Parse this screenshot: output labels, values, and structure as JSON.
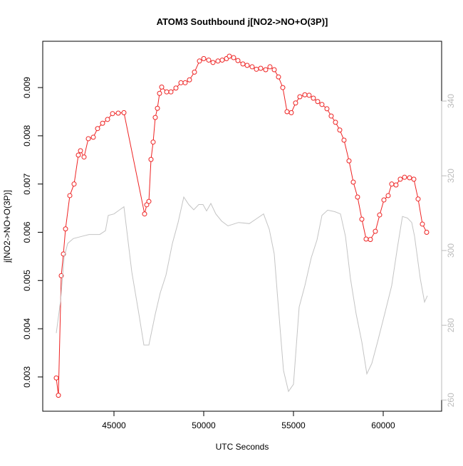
{
  "chart_data": {
    "type": "line",
    "title": "ATOM3 Southbound j[NO2->NO+O(3P)]",
    "xlabel": "UTC Seconds",
    "ylabel": "j[NO2->NO+O(3P)]",
    "xlim": [
      41032,
      63254
    ],
    "ylim": [
      0.00229,
      0.00996
    ],
    "y2lim": [
      257,
      356
    ],
    "xticks": [
      45000,
      50000,
      55000,
      60000
    ],
    "yticks": [
      0.003,
      0.004,
      0.005,
      0.006,
      0.007,
      0.008,
      0.009
    ],
    "y2ticks": [
      260,
      280,
      300,
      320,
      340
    ],
    "series": [
      {
        "color": "#ee2222",
        "marker": "circle",
        "x": [
          41786,
          41905,
          42064,
          42183,
          42302,
          42540,
          42778,
          43016,
          43135,
          43333,
          43572,
          43849,
          44087,
          44365,
          44643,
          44921,
          45238,
          45555,
          46706,
          46825,
          46944,
          47063,
          47182,
          47301,
          47421,
          47539,
          47658,
          47936,
          48174,
          48452,
          48730,
          48968,
          49206,
          49484,
          49762,
          50000,
          50277,
          50516,
          50793,
          51031,
          51269,
          51428,
          51666,
          51904,
          52182,
          52420,
          52698,
          52936,
          53174,
          53452,
          53690,
          53928,
          54166,
          54404,
          54642,
          54880,
          55118,
          55356,
          55634,
          55872,
          56110,
          56348,
          56586,
          56864,
          57102,
          57340,
          57578,
          57816,
          58094,
          58332,
          58570,
          58808,
          59046,
          59284,
          59562,
          59800,
          60038,
          60276,
          60474,
          60712,
          60950,
          61188,
          61466,
          61705,
          61943,
          62181,
          62419
        ],
        "values": [
          0.00298,
          0.00262,
          0.0051,
          0.00555,
          0.00607,
          0.00676,
          0.007,
          0.0076,
          0.00769,
          0.00756,
          0.00794,
          0.00797,
          0.00815,
          0.00826,
          0.00834,
          0.00846,
          0.00847,
          0.00848,
          0.00638,
          0.00657,
          0.00664,
          0.00751,
          0.00787,
          0.00838,
          0.00857,
          0.00888,
          0.00901,
          0.00891,
          0.00891,
          0.00899,
          0.0091,
          0.0091,
          0.00916,
          0.00932,
          0.00955,
          0.0096,
          0.00957,
          0.00952,
          0.00955,
          0.00957,
          0.0096,
          0.00965,
          0.00962,
          0.00956,
          0.00949,
          0.00946,
          0.00943,
          0.00938,
          0.0094,
          0.00937,
          0.00943,
          0.00937,
          0.00922,
          0.009,
          0.0085,
          0.00848,
          0.00868,
          0.00881,
          0.00885,
          0.00884,
          0.00878,
          0.00871,
          0.00865,
          0.00856,
          0.00841,
          0.00828,
          0.00812,
          0.00791,
          0.00748,
          0.00704,
          0.00673,
          0.00627,
          0.00586,
          0.00585,
          0.00602,
          0.00636,
          0.00667,
          0.00676,
          0.007,
          0.00698,
          0.0071,
          0.00714,
          0.00713,
          0.0071,
          0.00669,
          0.00617,
          0.006
        ]
      },
      {
        "color": "#c4c4c4",
        "axis": "y2",
        "x": [
          41786,
          42032,
          42222,
          42421,
          42738,
          43214,
          43611,
          44206,
          44524,
          44683,
          45000,
          45317,
          45555,
          45992,
          46389,
          46666,
          46944,
          47301,
          47579,
          47897,
          48254,
          48571,
          48889,
          49166,
          49444,
          49722,
          49960,
          50158,
          50396,
          50674,
          50992,
          51349,
          51944,
          52539,
          52936,
          53333,
          53650,
          53928,
          54126,
          54444,
          54722,
          55000,
          55317,
          55634,
          55991,
          56309,
          56586,
          56904,
          57301,
          57618,
          57896,
          58174,
          58491,
          58808,
          59086,
          59364,
          59681,
          60078,
          60474,
          60792,
          61070,
          61347,
          61586,
          61745,
          62062,
          62300,
          62459
        ],
        "values": [
          277.9,
          286.8,
          298.1,
          301.9,
          303.2,
          303.8,
          304.3,
          304.3,
          305.3,
          309.4,
          309.8,
          310.9,
          311.7,
          294.3,
          283.0,
          274.7,
          274.7,
          283.0,
          288.7,
          293.4,
          301.9,
          307.5,
          314.3,
          312.3,
          310.9,
          312.3,
          312.3,
          310.6,
          312.6,
          309.8,
          307.9,
          306.6,
          307.5,
          307.2,
          308.5,
          309.8,
          305.7,
          299.1,
          286.8,
          267.9,
          262.3,
          264.2,
          284.9,
          290.6,
          298.1,
          302.8,
          309.4,
          310.8,
          310.4,
          309.8,
          303.8,
          292.5,
          283.0,
          275.5,
          267.0,
          269.8,
          275.5,
          283.0,
          290.6,
          300.9,
          309.1,
          308.7,
          307.5,
          303.8,
          292.5,
          286.2,
          287.9
        ]
      }
    ]
  }
}
